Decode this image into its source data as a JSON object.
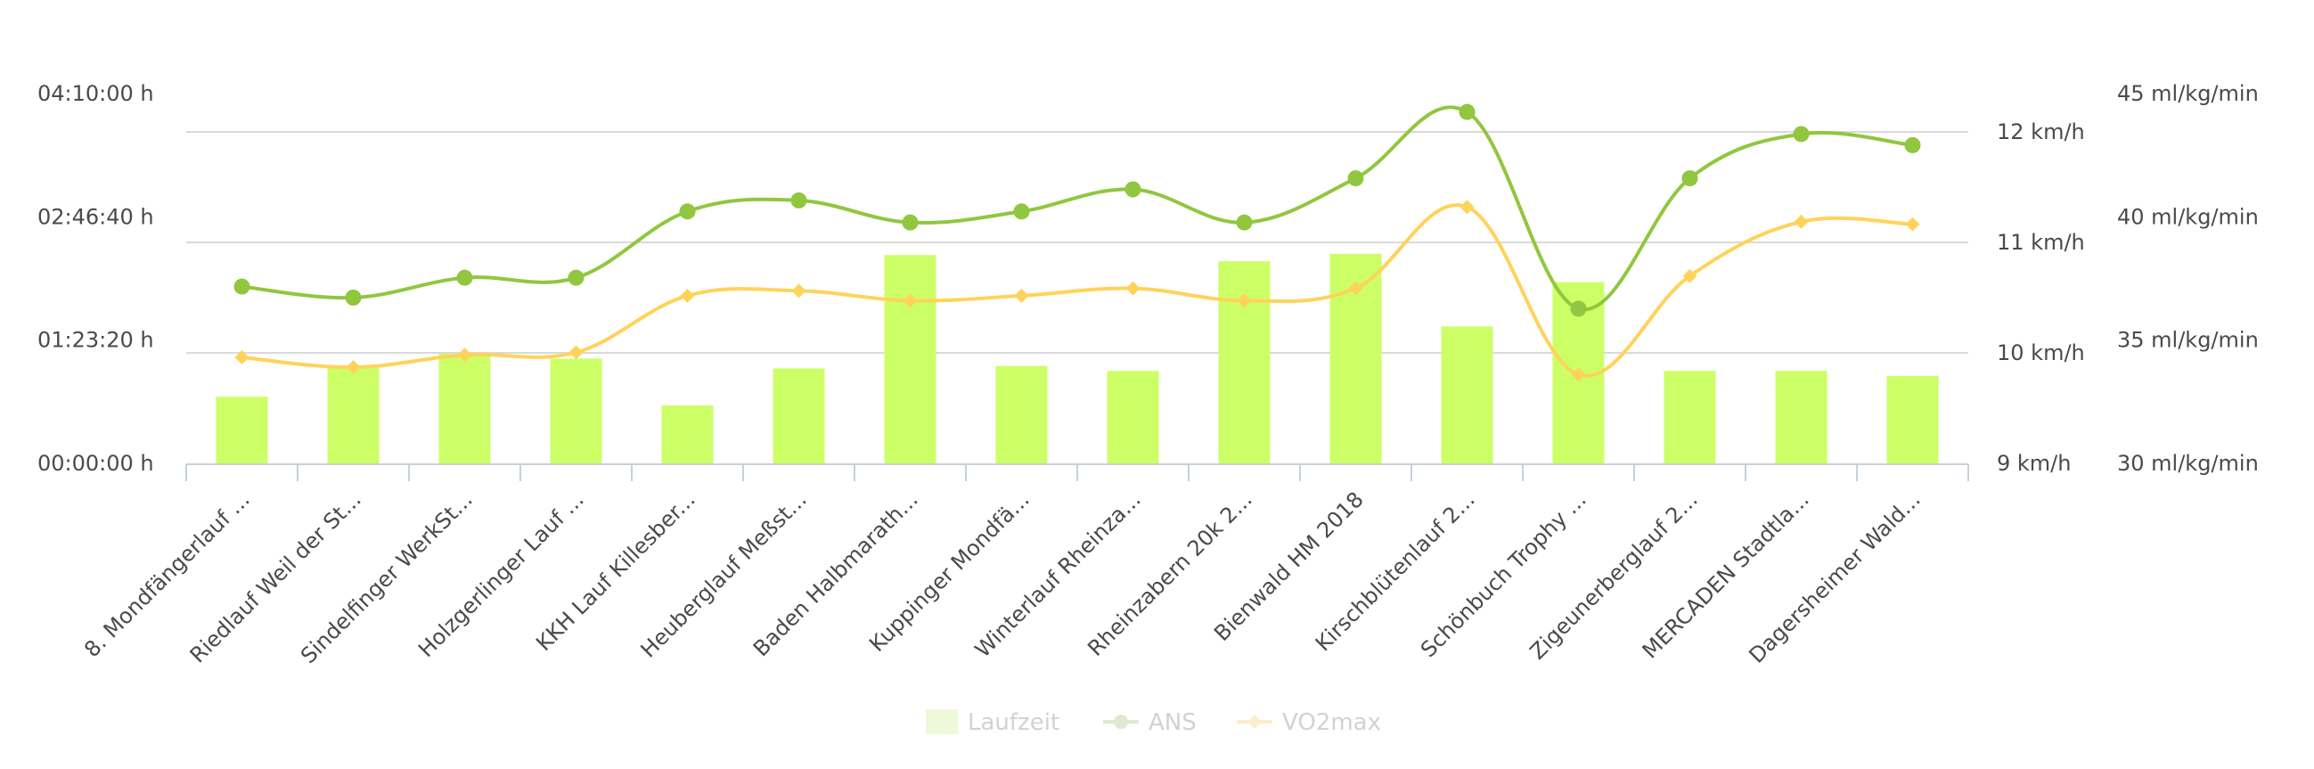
{
  "chart_data": {
    "type": "bar",
    "categories": [
      "8. Mondfängerlauf ...",
      "Riedlauf Weil der St...",
      "Sindelfinger WerkSt...",
      "Holzgerlinger Lauf ...",
      "KKH Lauf Killesber...",
      "Heuberglauf Meßst...",
      "Baden Halbmarath...",
      "Kuppinger Mondfä...",
      "Winterlauf Rheinza...",
      "Rheinzabern 20k 2...",
      "Bienwald HM 2018",
      "Kirschblütenlauf 2...",
      "Schönbuch Trophy ...",
      "Zigeunerberglauf 2...",
      "MERCADEN Stadtla...",
      "Dagersheimer Wald..."
    ],
    "series": [
      {
        "name": "Laufzeit",
        "kind": "column",
        "axis": "left",
        "color": "#ccff66",
        "values": [
          2700,
          3950,
          4450,
          4250,
          2350,
          3850,
          8450,
          3950,
          3750,
          8200,
          8500,
          5550,
          7350,
          3750,
          3750,
          3550
        ]
      },
      {
        "name": "ANS",
        "kind": "spline",
        "axis": "right1",
        "color": "#90c73e",
        "marker": "circle",
        "values": [
          10.6,
          10.5,
          10.68,
          10.68,
          11.28,
          11.38,
          11.18,
          11.28,
          11.48,
          11.18,
          11.58,
          12.18,
          10.4,
          11.58,
          11.98,
          11.88
        ]
      },
      {
        "name": "VO2max",
        "kind": "spline",
        "axis": "right2",
        "color": "#ffd35a",
        "marker": "diamond",
        "values": [
          34.3,
          33.9,
          34.4,
          34.5,
          36.8,
          37.0,
          36.6,
          36.8,
          37.1,
          36.6,
          37.1,
          40.4,
          33.6,
          37.6,
          39.8,
          39.7
        ]
      }
    ],
    "axes": {
      "left": {
        "ylim": [
          0,
          15000
        ],
        "ticks": [
          "00:00:00 h",
          "01:23:20 h",
          "02:46:40 h",
          "04:10:00 h"
        ]
      },
      "right1": {
        "ylim": [
          9,
          12
        ],
        "ticks": [
          "9 km/h",
          "10 km/h",
          "11 km/h",
          "12 km/h"
        ]
      },
      "right2": {
        "ylim": [
          30,
          45
        ],
        "ticks": [
          "30 ml/kg/min",
          "35 ml/kg/min",
          "40 ml/kg/min",
          "45 ml/kg/min"
        ]
      }
    },
    "grid": true,
    "legend_position": "bottom-center",
    "legend": [
      "Laufzeit",
      "ANS",
      "VO2max"
    ]
  }
}
